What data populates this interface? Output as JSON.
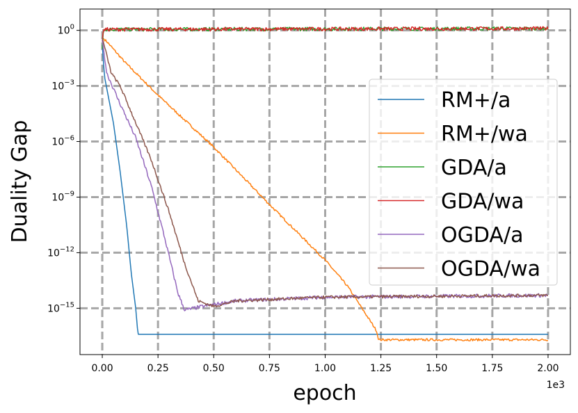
{
  "chart_data": {
    "type": "line",
    "xlabel": "epoch",
    "ylabel": "Duality Gap",
    "x_scale_label": "1e3",
    "xlim": [
      -0.1,
      2.1
    ],
    "x_ticks": [
      "0.00",
      "0.25",
      "0.50",
      "0.75",
      "1.00",
      "1.25",
      "1.50",
      "1.75",
      "2.00"
    ],
    "yscale": "log10",
    "ylim_log10": [
      -17.5,
      1.15
    ],
    "y_tick_exponents": [
      "0",
      "-3",
      "-6",
      "-9",
      "-12",
      "-15"
    ],
    "y_tick_base": "10",
    "grid": true,
    "legend_position": "center-right",
    "series": [
      {
        "name": "RM+/a",
        "color": "#1f77b4",
        "points_log10": [
          [
            0,
            -0.8
          ],
          [
            0.01,
            -2.5
          ],
          [
            0.05,
            -5
          ],
          [
            0.08,
            -7.6
          ],
          [
            0.11,
            -10.6
          ],
          [
            0.13,
            -13.1
          ],
          [
            0.15,
            -15
          ],
          [
            0.16,
            -16.4
          ],
          [
            0.3,
            -16.4
          ],
          [
            2.0,
            -16.4
          ]
        ],
        "noise": 0
      },
      {
        "name": "RM+/wa",
        "color": "#ff7f0e",
        "points_log10": [
          [
            0,
            -0.4
          ],
          [
            0.02,
            -0.6
          ],
          [
            0.1,
            -1.7
          ],
          [
            0.25,
            -3.5
          ],
          [
            0.5,
            -6.3
          ],
          [
            0.75,
            -9.4
          ],
          [
            1.0,
            -12.4
          ],
          [
            1.1,
            -13.8
          ],
          [
            1.23,
            -16.2
          ],
          [
            1.24,
            -16.7
          ],
          [
            2.0,
            -16.7
          ]
        ],
        "noise": 0.06
      },
      {
        "name": "GDA/a",
        "color": "#2ca02c",
        "points_log10": [
          [
            0,
            -1.0
          ],
          [
            0.005,
            0.05
          ],
          [
            2.0,
            0.1
          ]
        ],
        "noise": 0.1
      },
      {
        "name": "GDA/wa",
        "color": "#d62728",
        "points_log10": [
          [
            0,
            -0.6
          ],
          [
            0.005,
            0.05
          ],
          [
            2.0,
            0.1
          ]
        ],
        "noise": 0.1
      },
      {
        "name": "OGDA/a",
        "color": "#9467bd",
        "points_log10": [
          [
            0,
            -0.5
          ],
          [
            0.02,
            -2.3
          ],
          [
            0.07,
            -3.7
          ],
          [
            0.15,
            -5.8
          ],
          [
            0.22,
            -8.4
          ],
          [
            0.28,
            -11.2
          ],
          [
            0.34,
            -14.2
          ],
          [
            0.37,
            -15.1
          ],
          [
            0.45,
            -14.9
          ],
          [
            0.6,
            -14.6
          ],
          [
            1.0,
            -14.4
          ],
          [
            2.0,
            -14.3
          ]
        ],
        "noise": 0.1
      },
      {
        "name": "OGDA/wa",
        "color": "#8c564b",
        "points_log10": [
          [
            0,
            -0.4
          ],
          [
            0.04,
            -2.3
          ],
          [
            0.08,
            -3.0
          ],
          [
            0.14,
            -4.7
          ],
          [
            0.22,
            -7.0
          ],
          [
            0.3,
            -9.8
          ],
          [
            0.37,
            -12.6
          ],
          [
            0.43,
            -14.6
          ],
          [
            0.5,
            -14.9
          ],
          [
            0.6,
            -14.6
          ],
          [
            1.0,
            -14.4
          ],
          [
            2.0,
            -14.3
          ]
        ],
        "noise": 0.08
      }
    ]
  }
}
